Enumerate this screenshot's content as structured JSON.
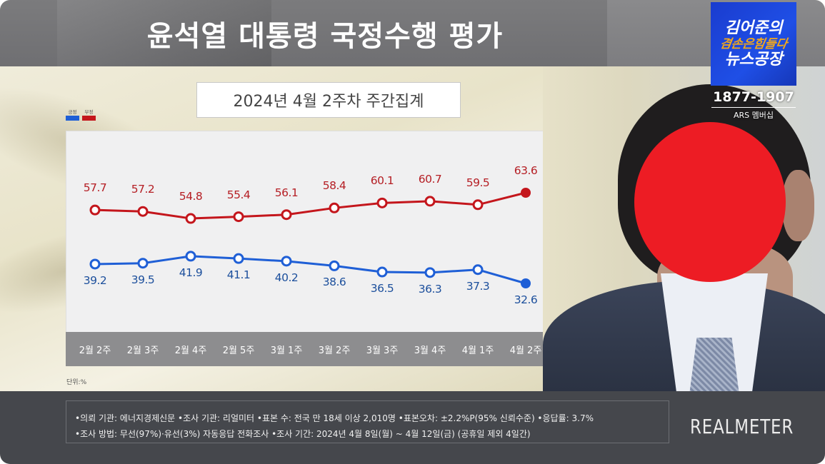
{
  "header": {
    "title": "윤석열 대통령 국정수행 평가",
    "subtitle": "2024년 4월 2주차 주간집계"
  },
  "brand": {
    "line1": "김어준의",
    "line2": "겸손은힘들다",
    "line3": "뉴스공장",
    "phone": "1877-1907",
    "membership": "ARS 멤버십"
  },
  "legend": {
    "positive_label": "긍정",
    "negative_label": "부정",
    "positive_color": "#1f5fd6",
    "negative_color": "#c4161c"
  },
  "chart_data": {
    "type": "line",
    "title": "윤석열 대통령 국정수행 평가",
    "subtitle": "2024년 4월 2주차 주간집계",
    "categories": [
      "2월 2주",
      "2월 3주",
      "2월 4주",
      "2월 5주",
      "3월 1주",
      "3월 2주",
      "3월 3주",
      "3월 4주",
      "4월 1주",
      "4월 2주"
    ],
    "series": [
      {
        "name": "부정",
        "color": "#c4161c",
        "values": [
          57.7,
          57.2,
          54.8,
          55.4,
          56.1,
          58.4,
          60.1,
          60.7,
          59.5,
          63.6
        ]
      },
      {
        "name": "긍정",
        "color": "#1f5fd6",
        "values": [
          39.2,
          39.5,
          41.9,
          41.1,
          40.2,
          38.6,
          36.5,
          36.3,
          37.3,
          32.6
        ]
      }
    ],
    "xlabel": "",
    "ylabel": "",
    "unit": "단위:%",
    "grid": false,
    "legend_position": "top-left",
    "data_labels": true
  },
  "unit_label": "단위:%",
  "footer": {
    "line1": "•의뢰 기관: 에너지경제신문 •조사 기관: 리얼미터 •표본 수: 전국 만 18세 이상 2,010명 •표본오차: ±2.2%P(95% 신뢰수준) •응답률: 3.7%",
    "line2": "•조사 방법: 무선(97%)·유선(3%) 자동응답 전화조사 •조사 기간: 2024년 4월 8일(월) ~ 4월 12일(금) (공휴일 제외 4일간)",
    "logo": "REALMETER"
  }
}
